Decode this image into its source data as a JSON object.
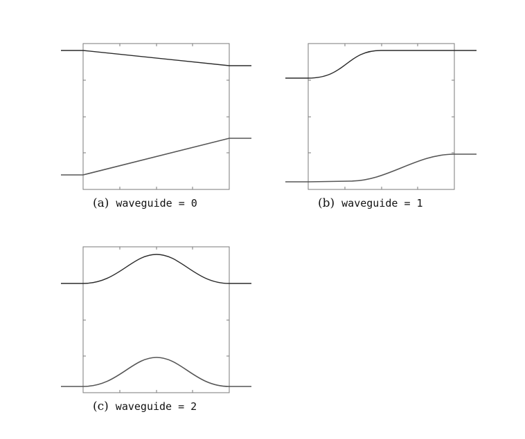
{
  "panels": [
    {
      "id": "a",
      "caption_prefix": "(a)",
      "caption_code": "waveguide = 0",
      "profile": "linear"
    },
    {
      "id": "b",
      "caption_prefix": "(b)",
      "caption_code": "waveguide = 1",
      "profile": "sigmoid"
    },
    {
      "id": "c",
      "caption_prefix": "(c)",
      "caption_code": "waveguide = 2",
      "profile": "gaussian"
    }
  ]
}
